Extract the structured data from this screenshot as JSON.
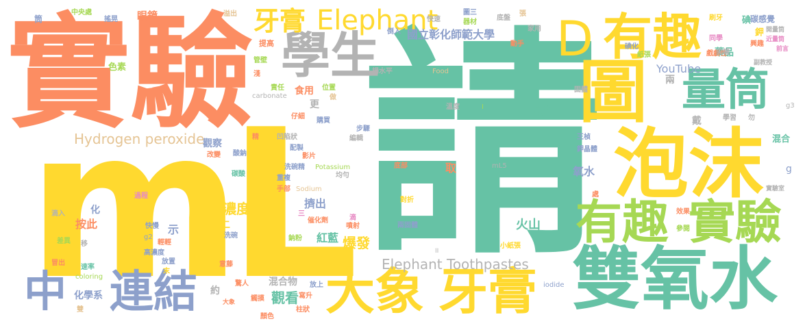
{
  "palette": {
    "green": "#66C2A5",
    "orange": "#FC8D62",
    "yellow": "#FFD92F",
    "lime": "#A6D854",
    "blue": "#8DA0CB",
    "gray": "#B3B3B3",
    "pink": "#E78AC3",
    "tan": "#E5C494"
  },
  "words": {
    "w01": "請",
    "w02": "mL",
    "w03": "實驗",
    "w04": "雙氧水",
    "w05": "泡沫",
    "w06": "圖",
    "w07": "D",
    "w08": "有趣",
    "w09": "有趣",
    "w10": "實驗",
    "w11": "量筒",
    "w12": "學生",
    "w13": "牙膏",
    "w14": "Elephant",
    "w15": "大象",
    "w16": "牙膏",
    "w17": "連結",
    "w18": "中",
    "w19": "Hydrogen peroxide",
    "w20": "Elephant Toothpastes",
    "w21": "國立彰化師範大學",
    "w22": "YouTube",
    "w23": "濃度",
    "w24": "觀看",
    "w25": "爆發",
    "w26": "火山",
    "w27": "偏光",
    "w28": "氧水",
    "w29": "按此",
    "w30": "紅藍",
    "w31": "擠出",
    "w32": "化學系",
    "w33": "混合物",
    "w34": "食用",
    "w35": "觀察",
    "w36": "約",
    "w37": "示",
    "w38": "化",
    "w39": "二",
    "w40": "更",
    "w41": "取",
    "w42": "兩",
    "w43": "戴",
    "w44": "混合",
    "w45": "g",
    "w46": "碘",
    "w47": "藥品",
    "w48": "鉀",
    "w49": "碳感覺",
    "w50": "眼鏡",
    "w51": "中央處",
    "w52": "搖晃",
    "w53": "筒",
    "w54": "色素",
    "w55": "提高",
    "w56": "溢出",
    "w57": "管壁",
    "w58": "淺",
    "w59": "責任",
    "w60": "carbonate",
    "w61": "位置",
    "w62": "做",
    "w63": "仔細",
    "w64": "購買",
    "w65": "凹陷狀",
    "w66": "配製",
    "w67": "影片",
    "w68": "洗碗精",
    "w69": "重複",
    "w70": "手部",
    "w71": "Sodium",
    "w72": "Potassium",
    "w73": "均勻",
    "w74": "步驟",
    "w75": "編輯",
    "w76": "底部",
    "w77": "對折",
    "w78": "兩固體",
    "w79": "催化劑",
    "w80": "噴射",
    "w81": "滴",
    "w82": "三",
    "w83": "鈉粉",
    "w84": "mL5",
    "w85": "固體",
    "w86": "溫度",
    "w87": "Food",
    "w88": "快速",
    "w89": "圖三",
    "w90": "器材",
    "w91": "倒入",
    "w92": "楊水平",
    "w93": "底盤",
    "w94": "張",
    "w95": "家用",
    "w96": "動手",
    "w97": "刷牙",
    "w98": "同學",
    "w99": "碘化",
    "w100": "紙張",
    "w101": "戲劇性",
    "w102": "尖端",
    "w103": "開量筒",
    "w104": "近量筒",
    "w105": "前言",
    "w106": "興趣",
    "w107": "副教授",
    "w108": "g3",
    "w109": "勿",
    "w110": "學習",
    "w111": "王楨",
    "w112": "鉀晶體",
    "w113": "處",
    "w114": "實驗室",
    "w115": "效果",
    "w116": "參閱",
    "w117": "小紙張",
    "w118": "寫升",
    "w119": "柱狀",
    "w120": "iodide",
    "w121": "II",
    "w122": "I",
    "w123": "精",
    "w124": "酸鈉",
    "w125": "改變",
    "w126": "碳酸",
    "w127": "過程",
    "w128": "滴入",
    "w129": "差異",
    "w130": "移",
    "w131": "g2",
    "w132": "快慢",
    "w133": "輕輕",
    "w134": "洗碗",
    "w135": "高濃度",
    "w136": "放置",
    "w137": "冒出",
    "w138": "速率",
    "w139": "末",
    "w140": "coloring",
    "w141": "意藤",
    "w142": "驚人",
    "w143": "雙",
    "w144": "大象",
    "w145": "觸摸",
    "w146": "放上",
    "w147": "顏色"
  }
}
